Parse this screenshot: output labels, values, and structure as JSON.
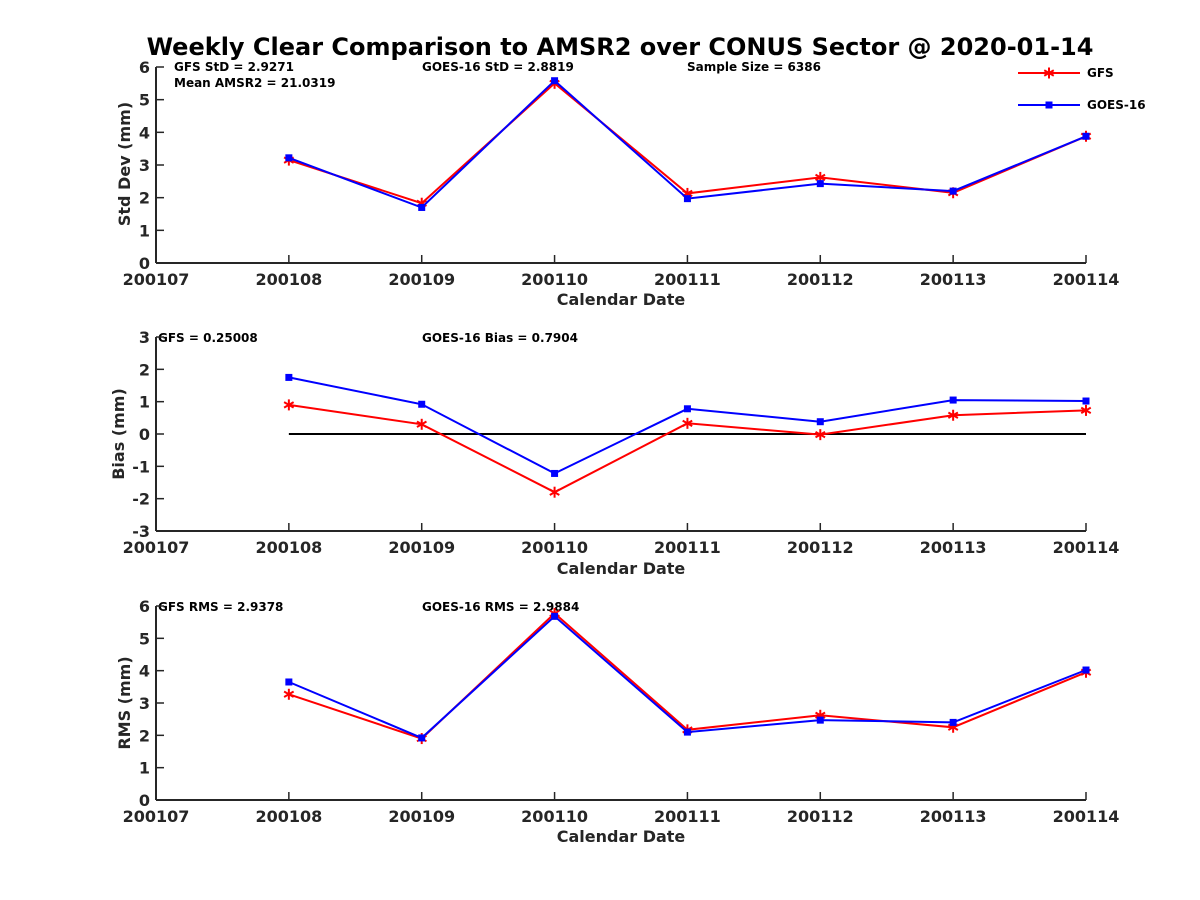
{
  "figure_title": "Weekly Clear Comparison to AMSR2 over CONUS Sector @ 2020-01-14",
  "legend": [
    {
      "name": "GFS",
      "color": "#ff0000",
      "marker": "asterisk"
    },
    {
      "name": "GOES-16",
      "color": "#0000ff",
      "marker": "square"
    }
  ],
  "chart_data": [
    {
      "type": "line",
      "ylabel": "Std Dev (mm)",
      "xlabel": "Calendar Date",
      "x": [
        "200107",
        "200108",
        "200109",
        "200110",
        "200111",
        "200112",
        "200113",
        "200114"
      ],
      "ylim": [
        0,
        6
      ],
      "yticks": [
        "0",
        "1",
        "2",
        "3",
        "4",
        "5",
        "6"
      ],
      "annotations": [
        "GFS StD = 2.9271",
        "GOES-16 StD = 2.8819",
        "Sample Size = 6386",
        "Mean AMSR2 = 21.0319"
      ],
      "series": [
        {
          "name": "GFS",
          "color": "#ff0000",
          "marker": "asterisk",
          "values": [
            null,
            3.15,
            1.83,
            5.5,
            2.13,
            2.62,
            2.15,
            3.88
          ]
        },
        {
          "name": "GOES-16",
          "color": "#0000ff",
          "marker": "square",
          "values": [
            null,
            3.22,
            1.7,
            5.58,
            1.97,
            2.43,
            2.2,
            3.88
          ]
        }
      ]
    },
    {
      "type": "line",
      "ylabel": "Bias (mm)",
      "xlabel": "Calendar Date",
      "x": [
        "200107",
        "200108",
        "200109",
        "200110",
        "200111",
        "200112",
        "200113",
        "200114"
      ],
      "ylim": [
        -3,
        3
      ],
      "yticks": [
        "-3",
        "-2",
        "-1",
        "0",
        "1",
        "2",
        "3"
      ],
      "reference_line": 0,
      "annotations": [
        "GFS = 0.25008",
        "GOES-16 Bias  = 0.7904"
      ],
      "series": [
        {
          "name": "GFS",
          "color": "#ff0000",
          "marker": "asterisk",
          "values": [
            null,
            0.9,
            0.3,
            -1.8,
            0.33,
            -0.02,
            0.58,
            0.73
          ]
        },
        {
          "name": "GOES-16",
          "color": "#0000ff",
          "marker": "square",
          "values": [
            null,
            1.75,
            0.92,
            -1.22,
            0.78,
            0.38,
            1.05,
            1.02
          ]
        }
      ]
    },
    {
      "type": "line",
      "ylabel": "RMS (mm)",
      "xlabel": "Calendar Date",
      "x": [
        "200107",
        "200108",
        "200109",
        "200110",
        "200111",
        "200112",
        "200113",
        "200114"
      ],
      "ylim": [
        0,
        6
      ],
      "yticks": [
        "0",
        "1",
        "2",
        "3",
        "4",
        "5",
        "6"
      ],
      "annotations": [
        "GFS RMS = 2.9378",
        "GOES-16 RMS = 2.9884"
      ],
      "series": [
        {
          "name": "GFS",
          "color": "#ff0000",
          "marker": "asterisk",
          "values": [
            null,
            3.27,
            1.9,
            5.77,
            2.17,
            2.62,
            2.25,
            3.95
          ]
        },
        {
          "name": "GOES-16",
          "color": "#0000ff",
          "marker": "square",
          "values": [
            null,
            3.65,
            1.92,
            5.68,
            2.1,
            2.47,
            2.4,
            4.02
          ]
        }
      ]
    }
  ]
}
